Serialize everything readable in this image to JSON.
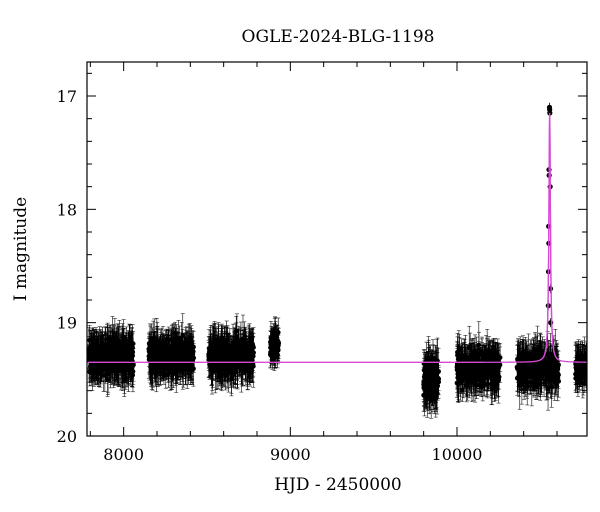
{
  "chart_data": {
    "type": "scatter",
    "title": "OGLE-2024-BLG-1198",
    "xlabel": "HJD - 2450000",
    "ylabel": "I magnitude",
    "xlim": [
      7780,
      10780
    ],
    "ylim": [
      20.0,
      16.7
    ],
    "y_inverted": true,
    "x_ticks": [
      8000,
      9000,
      10000
    ],
    "y_ticks": [
      17,
      18,
      19,
      20
    ],
    "x_tick_labels": [
      "8000",
      "9000",
      "10000"
    ],
    "y_tick_labels": [
      "17",
      "18",
      "19",
      "20"
    ],
    "baseline_mag": 19.35,
    "series": [
      {
        "kind": "photometry",
        "color": "#000000",
        "errorbars": true,
        "seasons": [
          {
            "start": 7790,
            "end": 8060,
            "mean": 19.3,
            "spread": 0.18,
            "err": 0.15,
            "n": 380
          },
          {
            "start": 8150,
            "end": 8420,
            "mean": 19.3,
            "spread": 0.17,
            "err": 0.14,
            "n": 380
          },
          {
            "start": 8510,
            "end": 8780,
            "mean": 19.3,
            "spread": 0.18,
            "err": 0.15,
            "n": 380
          },
          {
            "start": 8880,
            "end": 8930,
            "mean": 19.2,
            "spread": 0.13,
            "err": 0.11,
            "n": 80
          },
          {
            "start": 9800,
            "end": 9890,
            "mean": 19.5,
            "spread": 0.2,
            "err": 0.16,
            "n": 150
          },
          {
            "start": 10000,
            "end": 10260,
            "mean": 19.4,
            "spread": 0.18,
            "err": 0.15,
            "n": 320
          },
          {
            "start": 10360,
            "end": 10610,
            "mean": 19.4,
            "spread": 0.18,
            "err": 0.15,
            "n": 300
          },
          {
            "start": 10710,
            "end": 10780,
            "mean": 19.4,
            "spread": 0.15,
            "err": 0.13,
            "n": 90
          }
        ],
        "peak_points": [
          [
            10555,
            17.1
          ],
          [
            10556,
            17.12
          ],
          [
            10557,
            17.15
          ],
          [
            10552,
            17.65
          ],
          [
            10553,
            17.7
          ],
          [
            10559,
            17.8
          ],
          [
            10550,
            18.15
          ],
          [
            10551,
            18.3
          ],
          [
            10549,
            18.55
          ],
          [
            10548,
            18.85
          ],
          [
            10561,
            18.7
          ],
          [
            10562,
            19.0
          ]
        ]
      },
      {
        "kind": "model",
        "color": "#d64bd6",
        "t0": 10556,
        "peak_mag": 17.15,
        "width_days": 5.5
      }
    ]
  }
}
